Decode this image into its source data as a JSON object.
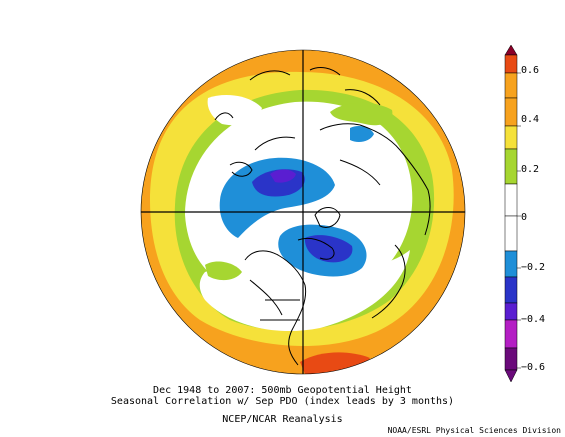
{
  "figure": {
    "title_line1": "Dec 1948 to 2007: 500mb Geopotential Height",
    "title_line2": "Seasonal Correlation w/ Sep PDO (index leads by 3 months)",
    "title_line3": "NCEP/NCAR Reanalysis",
    "credit": "NOAA/ESRL Physical Sciences Division"
  },
  "colorbar": {
    "tick_labels": [
      "0.6",
      "0.4",
      "0.2",
      "0",
      "−0.2",
      "−0.4",
      "−0.6"
    ],
    "colors": [
      "#8a0028",
      "#e84a14",
      "#f7a21e",
      "#f5e13a",
      "#a6d631",
      "#ffffff",
      "#1f8fd8",
      "#2a34c8",
      "#5a1ed1",
      "#b41ec4",
      "#6a0a7a"
    ]
  },
  "map": {
    "projection": "north polar stereographic",
    "field": "correlation",
    "colors": {
      "strong_positive": "#e84a14",
      "positive_orange": "#f7a21e",
      "positive_yellow": "#f5e13a",
      "weak_positive": "#a6d631",
      "near_zero": "#ffffff",
      "weak_negative": "#1f8fd8",
      "negative": "#2a34c8",
      "strong_negative": "#5a1ed1"
    }
  }
}
